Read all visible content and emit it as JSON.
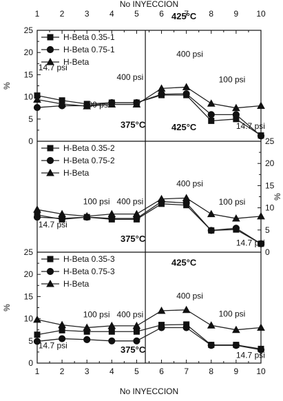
{
  "chart_data": {
    "type": "line",
    "title": "",
    "x_top_label": "No INYECCION",
    "x_bottom_label": "No INYECCION",
    "x": [
      1,
      2,
      3,
      4,
      5,
      6,
      7,
      8,
      9,
      10
    ],
    "xlim": [
      1,
      10
    ],
    "grid": false,
    "panels": [
      {
        "ylabel": "%",
        "ylabel_side": "left",
        "ylim": [
          0,
          25
        ],
        "yticks": [
          0,
          5,
          10,
          15,
          20,
          25
        ],
        "legend_position": "top-left",
        "series": [
          {
            "name": "H-Beta 0.35-1",
            "marker": "square",
            "values": [
              10.3,
              9.2,
              8.4,
              8.7,
              8.7,
              10.4,
              10.4,
              4.6,
              5.0,
              1.3
            ]
          },
          {
            "name": "H-Beta 0.75-1",
            "marker": "circle",
            "values": [
              7.6,
              8.0,
              8.0,
              8.7,
              8.7,
              10.6,
              10.7,
              6.0,
              6.0,
              1.2
            ]
          },
          {
            "name": "H-Beta",
            "marker": "triangle",
            "values": [
              9.4,
              8.4,
              7.9,
              8.3,
              8.3,
              11.9,
              12.2,
              8.5,
              7.5,
              8.0
            ]
          }
        ],
        "annotations": [
          {
            "text": "14.7 psi",
            "x": 1.05,
            "y": 16.0
          },
          {
            "text": "100 psi",
            "x": 2.85,
            "y": 7.6
          },
          {
            "text": "400 psi",
            "x": 4.2,
            "y": 13.8
          },
          {
            "text": "375°C",
            "x": 4.35,
            "y": 3.0,
            "bold": true
          },
          {
            "text": "425°C",
            "x": 6.4,
            "y": 27.5,
            "bold": true
          },
          {
            "text": "400 psi",
            "x": 6.6,
            "y": 19.0
          },
          {
            "text": "100 psi",
            "x": 8.3,
            "y": 13.3
          },
          {
            "text": "14.7 psi",
            "x": 9.0,
            "y": 2.8
          }
        ]
      },
      {
        "ylabel": "%",
        "ylabel_side": "right",
        "ylim": [
          0,
          25
        ],
        "yticks": [
          0,
          5,
          10,
          15,
          20,
          25
        ],
        "legend_position": "top-left",
        "series": [
          {
            "name": "H-Beta 0.35-2",
            "marker": "square",
            "values": [
              8.4,
              7.4,
              7.9,
              7.4,
              7.4,
              10.9,
              10.6,
              4.9,
              5.1,
              1.9
            ]
          },
          {
            "name": "H-Beta 0.75-2",
            "marker": "circle",
            "values": [
              7.9,
              7.6,
              7.9,
              7.6,
              7.6,
              11.4,
              11.1,
              4.9,
              5.4,
              1.9
            ]
          },
          {
            "name": "H-Beta",
            "marker": "triangle",
            "values": [
              9.6,
              8.6,
              8.1,
              8.6,
              8.6,
              12.0,
              12.2,
              8.6,
              7.6,
              8.1
            ]
          }
        ],
        "annotations": [
          {
            "text": "14.7 psi",
            "x": 1.05,
            "y": 5.6
          },
          {
            "text": "100 psi",
            "x": 2.85,
            "y": 10.8
          },
          {
            "text": "400 psi",
            "x": 4.2,
            "y": 10.8
          },
          {
            "text": "375°C",
            "x": 4.35,
            "y": 2.3,
            "bold": true
          },
          {
            "text": "425°C",
            "x": 6.4,
            "y": 27.5,
            "bold": true
          },
          {
            "text": "400 psi",
            "x": 6.6,
            "y": 14.8
          },
          {
            "text": "100 psi",
            "x": 8.3,
            "y": 10.7
          },
          {
            "text": "14.7 psi",
            "x": 9.0,
            "y": 1.5
          }
        ]
      },
      {
        "ylabel": "%",
        "ylabel_side": "left",
        "ylim": [
          0,
          25
        ],
        "yticks": [
          0,
          5,
          10,
          15,
          20,
          25
        ],
        "legend_position": "top-left",
        "series": [
          {
            "name": "H-Beta 0.35-3",
            "marker": "square",
            "values": [
              6.4,
              7.4,
              7.1,
              7.1,
              7.1,
              8.6,
              8.7,
              4.1,
              4.1,
              3.2
            ]
          },
          {
            "name": "H-Beta 0.75-3",
            "marker": "circle",
            "values": [
              4.9,
              5.5,
              5.3,
              5.0,
              5.0,
              8.0,
              8.0,
              4.0,
              4.0,
              3.0
            ]
          },
          {
            "name": "H-Beta",
            "marker": "triangle",
            "values": [
              9.8,
              8.6,
              8.0,
              8.4,
              8.4,
              11.8,
              12.0,
              8.5,
              7.5,
              8.0
            ]
          }
        ],
        "annotations": [
          {
            "text": "14.7 psi",
            "x": 1.05,
            "y": 3.3
          },
          {
            "text": "100 psi",
            "x": 2.85,
            "y": 10.3
          },
          {
            "text": "400 psi",
            "x": 4.2,
            "y": 10.3
          },
          {
            "text": "375°C",
            "x": 4.35,
            "y": 2.3,
            "bold": true
          },
          {
            "text": "425°C",
            "x": 6.4,
            "y": 22.0,
            "bold": true
          },
          {
            "text": "400 psi",
            "x": 6.6,
            "y": 14.5
          },
          {
            "text": "100 psi",
            "x": 8.3,
            "y": 10.5
          },
          {
            "text": "14.7 psi",
            "x": 9.0,
            "y": 1.2
          }
        ]
      }
    ],
    "divider_x": 5.35
  }
}
